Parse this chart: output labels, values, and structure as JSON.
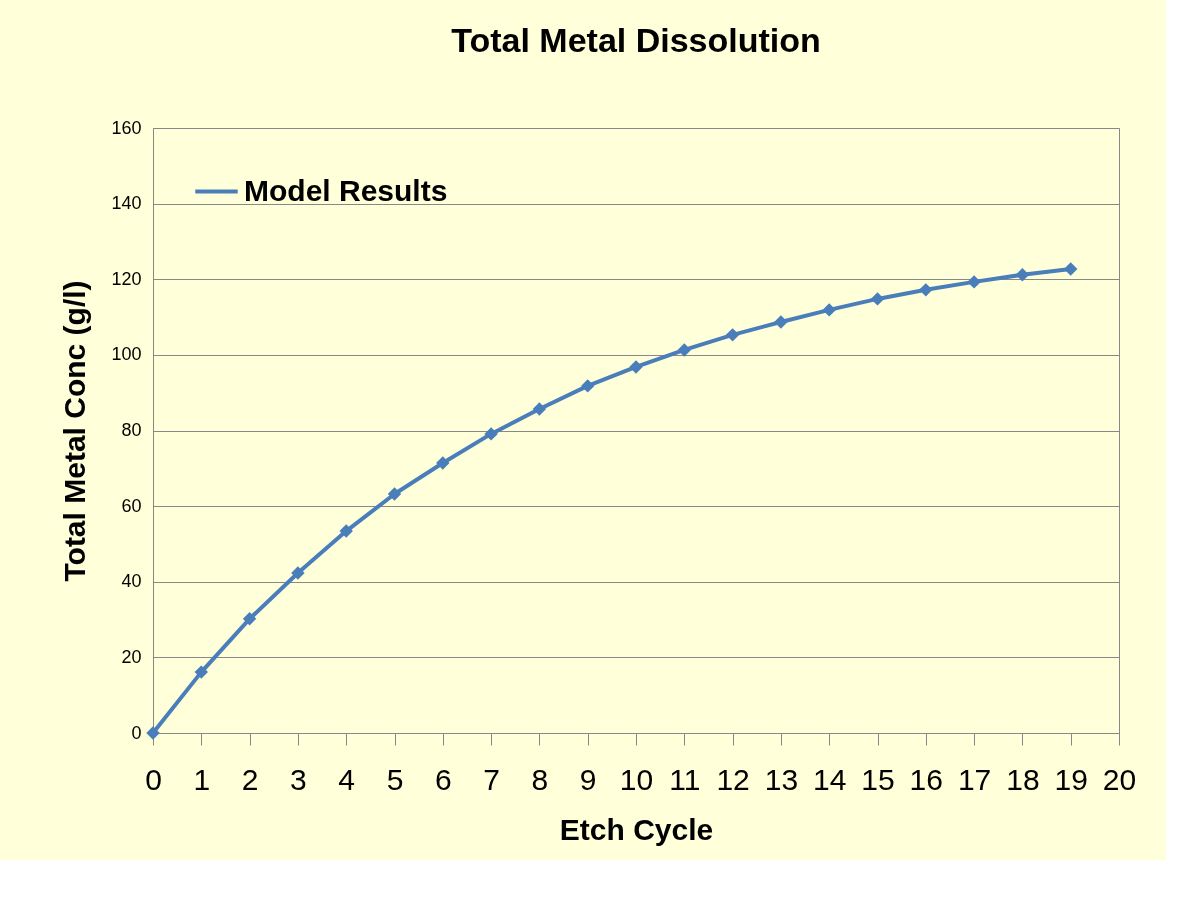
{
  "chart_data": {
    "type": "line",
    "title": "Total Metal Dissolution",
    "xlabel": "Etch Cycle",
    "ylabel": "Total Metal Conc (g/l)",
    "x": [
      0,
      1,
      2,
      3,
      4,
      5,
      6,
      7,
      8,
      9,
      10,
      11,
      12,
      13,
      14,
      15,
      16,
      17,
      18,
      19
    ],
    "series": [
      {
        "name": "Model Results",
        "color": "#4a7ebb",
        "values": [
          0,
          16.1,
          30.2,
          42.3,
          53.4,
          63.2,
          71.4,
          79.1,
          85.7,
          91.8,
          96.8,
          101.3,
          105.3,
          108.7,
          111.9,
          114.8,
          117.2,
          119.3,
          121.2,
          122.7
        ]
      }
    ],
    "xlim": [
      0,
      20
    ],
    "xticks": [
      0,
      1,
      2,
      3,
      4,
      5,
      6,
      7,
      8,
      9,
      10,
      11,
      12,
      13,
      14,
      15,
      16,
      17,
      18,
      19,
      20
    ],
    "ylim": [
      0,
      160
    ],
    "yticks": [
      0,
      20,
      40,
      60,
      80,
      100,
      120,
      140,
      160
    ],
    "grid": "y",
    "legend": "top left",
    "marker": "diamond",
    "line_style": "solid"
  }
}
